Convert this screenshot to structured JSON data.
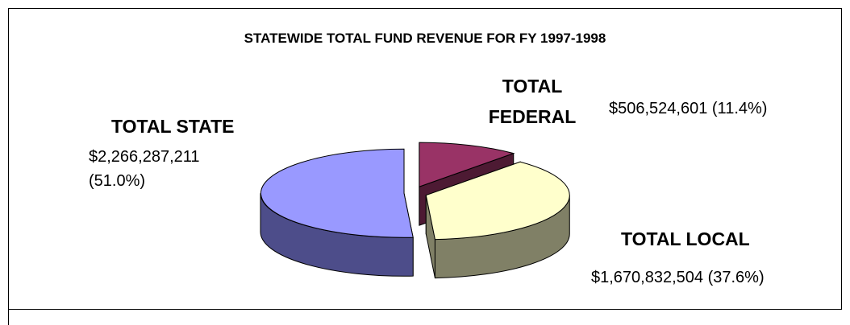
{
  "chart_data": {
    "type": "pie3d",
    "title": "STATEWIDE TOTAL FUND REVENUE FOR FY 1997-1998",
    "categories": [
      "TOTAL FEDERAL",
      "TOTAL LOCAL",
      "TOTAL STATE"
    ],
    "values": [
      506524601,
      1670832504,
      2266287211
    ],
    "value_labels": [
      "$506,524,601 (11.4%)",
      "$1,670,832,504 (37.6%)",
      "$2,266,287,211 (51.0%)"
    ],
    "colors": [
      "#993366",
      "#ffffcc",
      "#9999ff"
    ],
    "side_colors": [
      "#4d1a33",
      "#808066",
      "#4d4d8a"
    ]
  }
}
